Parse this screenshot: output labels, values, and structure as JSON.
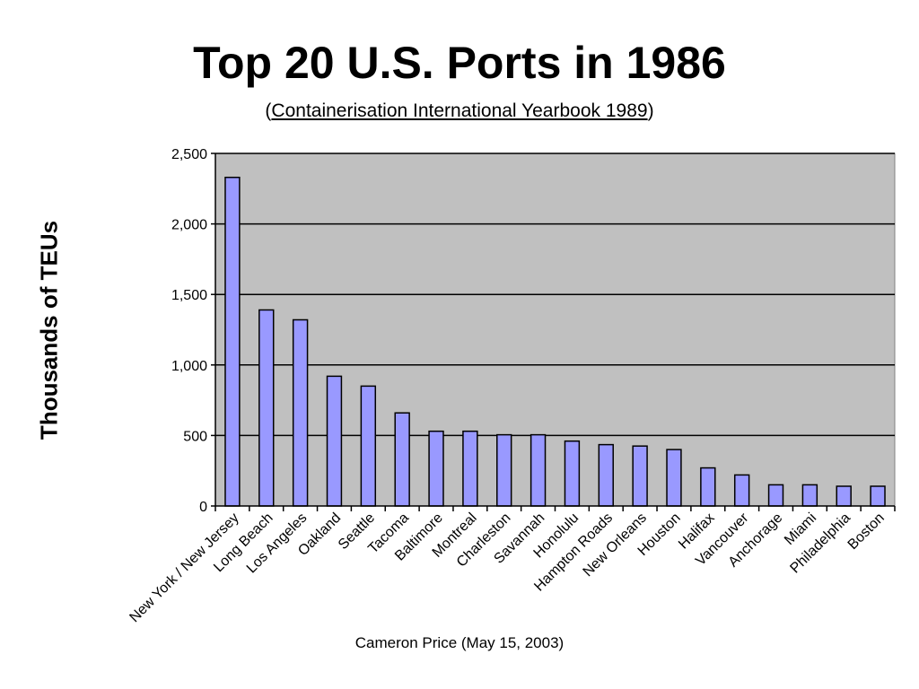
{
  "title": "Top 20 U.S. Ports in 1986",
  "subtitle": {
    "open": "(",
    "source": "Containerisation International Yearbook 1989",
    "close": ")"
  },
  "footer": "Cameron Price (May 15, 2003)",
  "colors": {
    "bar_fill": "#9999FF",
    "bar_stroke": "#000000",
    "plot_background": "#C0C0C0",
    "gridline": "#000000"
  },
  "chart_data": {
    "type": "bar",
    "title": "Top 20 U.S. Ports in 1986",
    "xlabel": "",
    "ylabel": "Thousands of TEUs",
    "ylim": [
      0,
      2500
    ],
    "yticks": [
      0,
      500,
      1000,
      1500,
      2000,
      2500
    ],
    "ytick_labels": [
      "0",
      "500",
      "1,000",
      "1,500",
      "2,000",
      "2,500"
    ],
    "grid": true,
    "legend": "none",
    "categories": [
      "New York / New Jersey",
      "Long Beach",
      "Los Angeles",
      "Oakland",
      "Seattle",
      "Tacoma",
      "Baltimore",
      "Montreal",
      "Charleston",
      "Savannah",
      "Honolulu",
      "Hampton Roads",
      "New Orleans",
      "Houston",
      "Halifax",
      "Vancouver",
      "Anchorage",
      "Miami",
      "Philadelphia",
      "Boston"
    ],
    "values": [
      2330,
      1390,
      1320,
      920,
      850,
      660,
      530,
      530,
      505,
      505,
      460,
      435,
      425,
      400,
      270,
      220,
      150,
      150,
      140,
      140
    ]
  }
}
